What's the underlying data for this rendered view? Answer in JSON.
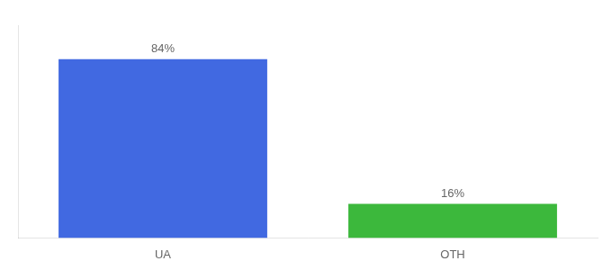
{
  "chart_data": {
    "type": "bar",
    "categories": [
      "UA",
      "OTH"
    ],
    "values": [
      84,
      16
    ],
    "colors": [
      "#4169e1",
      "#3cb83c"
    ],
    "value_labels": [
      "84%",
      "16%"
    ],
    "data_labels": true,
    "ylim": [
      0,
      100
    ],
    "yticks": [],
    "tick_labels": "x",
    "grid": false
  }
}
